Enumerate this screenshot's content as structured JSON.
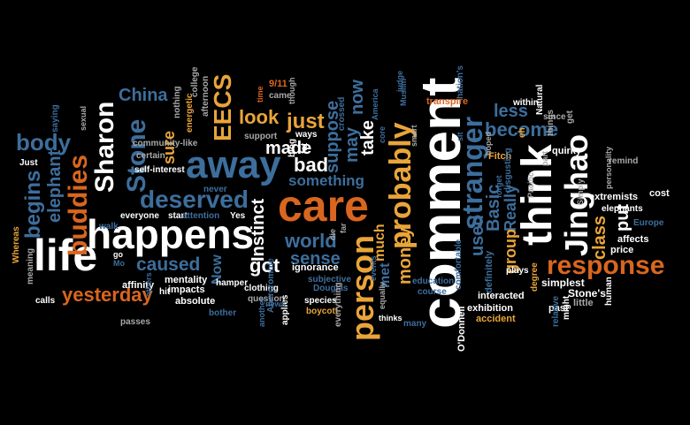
{
  "palette": {
    "background": "#000000",
    "white": "#ffffff",
    "orange": "#d9661f",
    "blue": "#3d6e9c",
    "light_blue": "#8fb8d8",
    "gray": "#a8a8a8",
    "amber": "#e9a53a"
  },
  "words": {
    "comment": "comment",
    "care": "care",
    "think": "think",
    "happens": "happens",
    "life": "life",
    "away": "away",
    "response": "response",
    "person": "person",
    "probably": "probably",
    "Jinghao": "Jinghao",
    "stranger": "stranger",
    "deserved": "deserved",
    "buddies": "buddies",
    "Sharon": "Sharon",
    "Stone": "Stone",
    "yesterday": "yesterday",
    "EECS": "EECS",
    "Instinct": "Instinct",
    "got": "got",
    "caused": "caused",
    "begins": "begins",
    "elephant": "elephant",
    "body": "body",
    "world": "world",
    "sense": "sense",
    "money": "money",
    "used": "used",
    "Basic": "Basic",
    "Really": "Really",
    "group": "group",
    "class": "class",
    "put": "put",
    "become": "become",
    "less": "less",
    "look": "look",
    "made": "made",
    "just": "just",
    "bad": "bad",
    "something": "something",
    "suppose": "suppose",
    "may": "may",
    "take": "take",
    "now": "now",
    "much": "much",
    "met": "met",
    "China": "China",
    "sure": "sure",
    "Now": "Now",
    "ignorance": "ignorance",
    "O'Donnell": "O'Donnell",
    "interacted": "interacted",
    "exhibition": "exhibition",
    "accident": "accident",
    "definitely": "definitely",
    "simplest": "simplest",
    "Stone's": "Stone's",
    "little": "little",
    "past": "past",
    "price": "price",
    "affects": "affects",
    "extremists": "extremists",
    "cost": "cost",
    "Europe": "Europe",
    "remind": "remind",
    "elephants": "elephants",
    "Whereas": "Whereas",
    "meaning": "meaning",
    "calls": "calls",
    "passes": "passes",
    "affinity": "affinity",
    "mentality": "mentality",
    "impacts": "impacts",
    "absolute": "absolute",
    "bother": "bother",
    "hamper": "hamper",
    "clothing": "clothing",
    "question": "question",
    "applies": "applies",
    "species": "species",
    "boycott": "boycott",
    "subjective": "subjective",
    "Douglas": "Douglas",
    "Abercrombie": "Abercrombie",
    "everything": "everything",
    "thinks": "thinks",
    "equally": "equally",
    "events": "events",
    "education": "education",
    "course": "course",
    "comfortable": "comfortable",
    "plays": "plays",
    "many": "many",
    "transpire": "transpire",
    "within": "within",
    "Natural": "Natural",
    "since": "since",
    "get": "get",
    "quirky": "quirky",
    "things": "things",
    "Fitch": "Fitch",
    "disgusting": "disgusting",
    "human": "human",
    "relative": "relative",
    "degree": "degree",
    "might": "might",
    "personality": "personality",
    "Simply": "Simply",
    "nation's": "nation's",
    "9/11": "9/11",
    "came": "came",
    "time": "time",
    "though": "though",
    "crossed": "crossed",
    "America": "America",
    "support": "support",
    "blog": "blog",
    "fat": "fat",
    "ways": "ways",
    "Yes": "Yes",
    "start": "start",
    "attention": "attention",
    "everyone": "everyone",
    "walk": "walk",
    "never": "never",
    "self-interest": "self-interest",
    "energetic": "energetic",
    "certain": "certain",
    "community-like": "community-like",
    "nothing": "nothing",
    "afternoon": "afternoon",
    "college": "college",
    "saying": "saying",
    "sexual": "sexual",
    "Just": "Just",
    "hit": "hit",
    "die": "die",
    "far": "far",
    "smart": "smart",
    "core": "core",
    "eh": "eh",
    "part": "part",
    "go": "go",
    "Mo": "Mo",
    "others": "others",
    "news": "news",
    "another": "another",
    "suppose_small": "suppose",
    "Muslim": "Muslim",
    "judge": "judge",
    "person_small": "person",
    "Pacific": "Pacific",
    "sit": "sit",
    "forget": "forget",
    "hoped": "hoped"
  }
}
